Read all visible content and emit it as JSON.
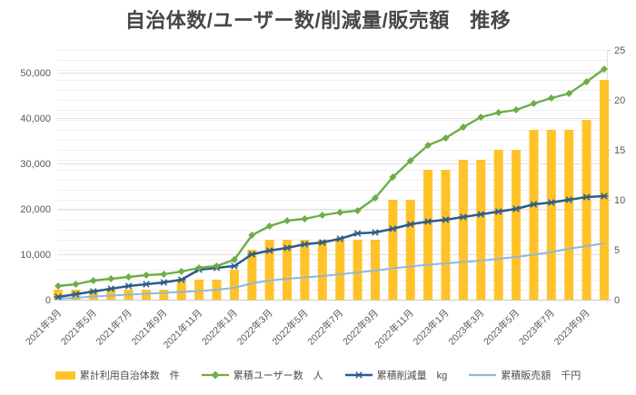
{
  "title": "自治体数/ユーザー数/削減量/販売額　推移",
  "colors": {
    "bar": "#FFC329",
    "users": "#6FAD47",
    "reduction": "#2B5D8C",
    "sales": "#8FB8DF",
    "title_text": "#474747",
    "axis_text": "#595959",
    "legend_text": "#4d4d4d",
    "grid_minor": "#F0F0F0",
    "grid_major": "#E1E1E1",
    "axis_line": "#C9C9C9"
  },
  "chart_data": {
    "type": "combo-bar-line",
    "title": "自治体数/ユーザー数/削減量/販売額　推移",
    "x": [
      "2021年3月",
      "2021年4月",
      "2021年5月",
      "2021年6月",
      "2021年7月",
      "2021年8月",
      "2021年9月",
      "2021年10月",
      "2021年11月",
      "2021年12月",
      "2022年1月",
      "2022年2月",
      "2022年3月",
      "2022年4月",
      "2022年5月",
      "2022年6月",
      "2022年7月",
      "2022年8月",
      "2022年9月",
      "2022年10月",
      "2022年11月",
      "2022年12月",
      "2023年1月",
      "2023年2月",
      "2023年3月",
      "2023年4月",
      "2023年5月",
      "2023年6月",
      "2023年7月",
      "2023年8月",
      "2023年9月",
      "2023年10月"
    ],
    "x_label_every": 2,
    "left_axis": {
      "min": 0,
      "max": 50000,
      "step": 10000,
      "tick_labels": [
        "0",
        "10,000",
        "20,000",
        "30,000",
        "40,000",
        "50,000"
      ]
    },
    "right_axis": {
      "min": 0,
      "max": 25,
      "step": 5,
      "tick_labels": [
        "0",
        "5",
        "10",
        "15",
        "20",
        "25"
      ]
    },
    "grid": true,
    "legend_position": "bottom",
    "series": [
      {
        "name": "累計利用自治体数　件",
        "type": "bar",
        "axis": "right",
        "marker": "none",
        "values": [
          1,
          1,
          1,
          1,
          1,
          1,
          1,
          2,
          2,
          2,
          3,
          5,
          6,
          6,
          6,
          6,
          6,
          6,
          6,
          10,
          10,
          13,
          13,
          14,
          14,
          15,
          15,
          17,
          17,
          17,
          18,
          22
        ]
      },
      {
        "name": "累積ユーザー数　人",
        "type": "line",
        "axis": "left",
        "marker": "diamond",
        "values": [
          3000,
          3400,
          4200,
          4600,
          5000,
          5400,
          5600,
          6200,
          7000,
          7400,
          8800,
          14200,
          16200,
          17400,
          17800,
          18600,
          19200,
          19600,
          22400,
          27000,
          30600,
          34000,
          35600,
          38000,
          40200,
          41200,
          41800,
          43200,
          44400,
          45400,
          48000,
          50800
        ]
      },
      {
        "name": "累積削減量　kg",
        "type": "line",
        "axis": "left",
        "marker": "asterisk",
        "values": [
          600,
          1200,
          1800,
          2400,
          3000,
          3400,
          3800,
          4400,
          6600,
          7000,
          7400,
          10000,
          10800,
          11400,
          12200,
          12600,
          13400,
          14600,
          14800,
          15600,
          16600,
          17200,
          17600,
          18200,
          18800,
          19400,
          20000,
          21000,
          21400,
          22000,
          22600,
          22800
        ]
      },
      {
        "name": "累積販売額　千円",
        "type": "line",
        "axis": "left",
        "marker": "none",
        "values": [
          200,
          400,
          700,
          900,
          1100,
          1300,
          1500,
          1700,
          1900,
          2200,
          2600,
          3600,
          4200,
          4600,
          4900,
          5200,
          5600,
          6000,
          6400,
          6900,
          7300,
          7700,
          8000,
          8300,
          8600,
          9000,
          9400,
          9900,
          10500,
          11200,
          11800,
          12400
        ]
      }
    ]
  }
}
